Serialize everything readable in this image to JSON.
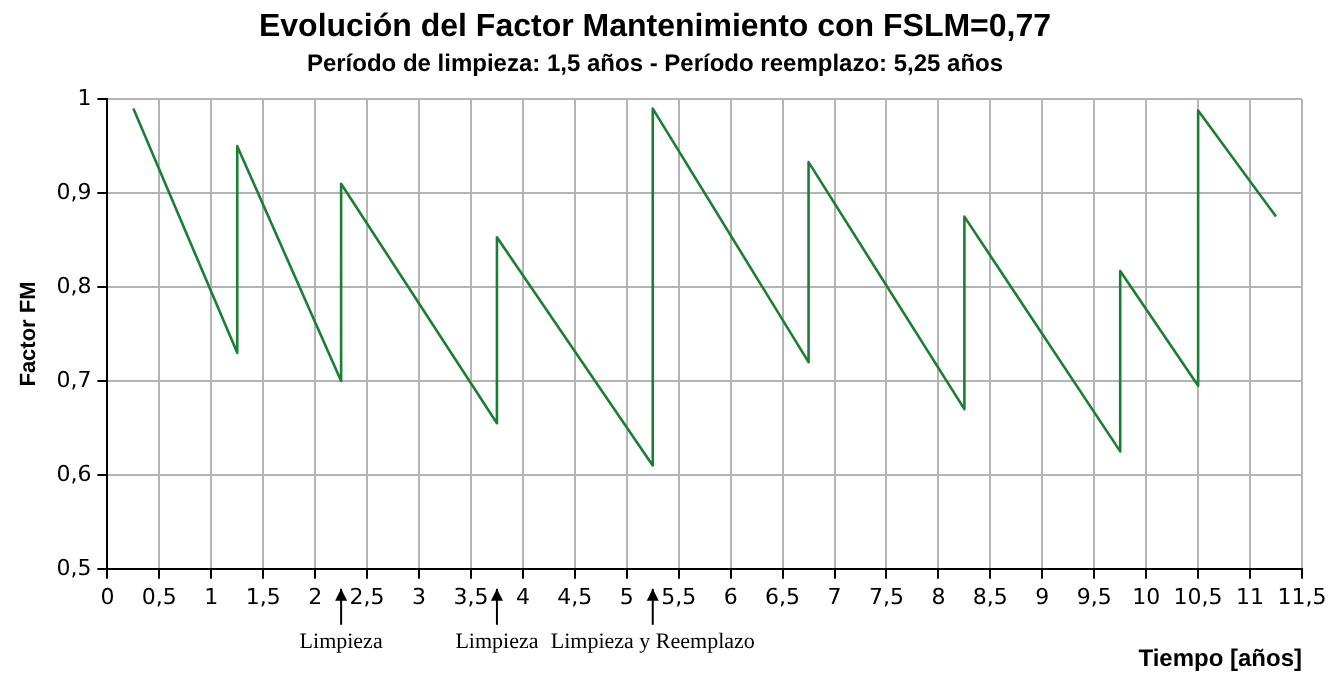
{
  "chart_data": {
    "type": "line",
    "title": "Evolución del Factor Mantenimiento con FSLM=0,77",
    "subtitle": "Período de limpieza: 1,5 años - Período reemplazo: 5,25 años",
    "xlabel": "Tiempo [años]",
    "ylabel": "Factor FM",
    "series": [
      {
        "color": "#1a7f32",
        "x": [
          0.25,
          1.25,
          1.25,
          2.25,
          2.25,
          3.75,
          3.75,
          5.25,
          5.25,
          6.75,
          6.75,
          8.25,
          8.25,
          9.75,
          9.75,
          10.5,
          10.5,
          11.25
        ],
        "values": [
          0.99,
          0.73,
          0.95,
          0.7,
          0.91,
          0.655,
          0.853,
          0.61,
          0.99,
          0.72,
          0.933,
          0.67,
          0.875,
          0.625,
          0.817,
          0.695,
          0.988,
          0.875
        ]
      }
    ],
    "xlim": [
      0,
      11.5
    ],
    "xticks": [
      0,
      {
        "value": 0.5,
        "label": "0,5"
      },
      1,
      {
        "value": 1.5,
        "label": "1,5"
      },
      2,
      {
        "value": 2.5,
        "label": "2,5"
      },
      3,
      {
        "value": 3.5,
        "label": "3,5"
      },
      4,
      {
        "value": 4.5,
        "label": "4,5"
      },
      5,
      {
        "value": 5.5,
        "label": "5,5"
      },
      6,
      {
        "value": 6.5,
        "label": "6,5"
      },
      7,
      {
        "value": 7.5,
        "label": "7,5"
      },
      8,
      {
        "value": 8.5,
        "label": "8,5"
      },
      9,
      {
        "value": 9.5,
        "label": "9,5"
      },
      10,
      {
        "value": 10.5,
        "label": "10,5"
      },
      11,
      {
        "value": 11.5,
        "label": "11,5"
      }
    ],
    "ylim": [
      0.5,
      1
    ],
    "yticks": [
      {
        "value": 0.5,
        "label": "0,5"
      },
      {
        "value": 0.6,
        "label": "0,6"
      },
      {
        "value": 0.7,
        "label": "0,7"
      },
      {
        "value": 0.8,
        "label": "0,8"
      },
      {
        "value": 0.9,
        "label": "0,9"
      },
      1
    ],
    "annotations": [
      {
        "text": "Limpieza",
        "x": 2.25
      },
      {
        "text": "Limpieza",
        "x": 3.75
      },
      {
        "text": "Limpieza y Reemplazo",
        "x": 5.25
      }
    ],
    "grid": true,
    "legend": false,
    "marker": "none",
    "line_style": "solid"
  }
}
